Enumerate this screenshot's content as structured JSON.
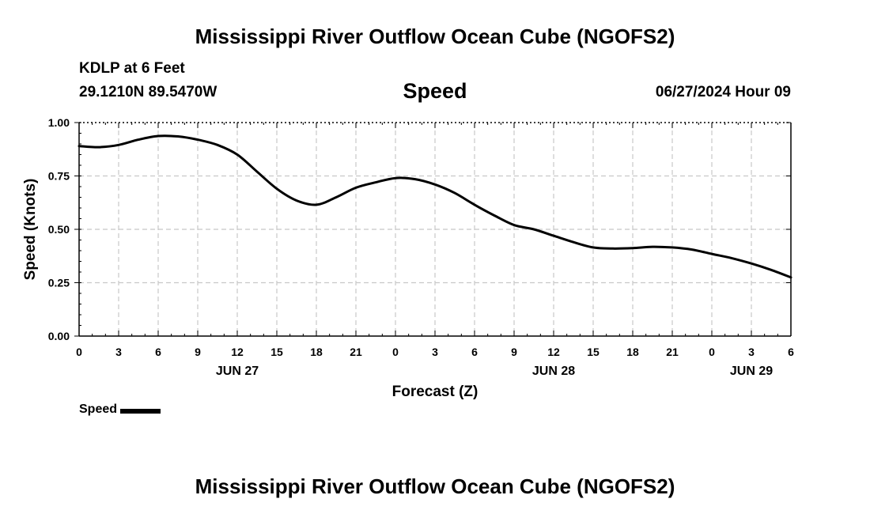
{
  "header": {
    "title": "Mississippi River Outflow Ocean Cube (NGOFS2)",
    "station": "KDLP at 6 Feet",
    "coords": "29.1210N  89.5470W",
    "subtitle": "Speed",
    "timestamp": "06/27/2024 Hour 09"
  },
  "footer": {
    "title": "Mississippi River Outflow Ocean Cube (NGOFS2)"
  },
  "chart_data": {
    "type": "line",
    "title": "Speed",
    "xlabel": "Forecast (Z)",
    "ylabel": "Speed (Knots)",
    "xlim": [
      0,
      54
    ],
    "ylim": [
      0,
      1
    ],
    "grid": true,
    "x_ticks": [
      0,
      3,
      6,
      9,
      12,
      15,
      18,
      21,
      24,
      27,
      30,
      33,
      36,
      39,
      42,
      45,
      48,
      51,
      54
    ],
    "x_tick_labels": [
      "0",
      "3",
      "6",
      "9",
      "12",
      "15",
      "18",
      "21",
      "0",
      "3",
      "6",
      "9",
      "12",
      "15",
      "18",
      "21",
      "0",
      "3",
      "6"
    ],
    "y_ticks": [
      0,
      0.25,
      0.5,
      0.75,
      1.0
    ],
    "y_tick_labels": [
      "0.00",
      "0.25",
      "0.50",
      "0.75",
      "1.00"
    ],
    "date_labels": [
      {
        "x": 12,
        "label": "JUN 27"
      },
      {
        "x": 36,
        "label": "JUN 28"
      },
      {
        "x": 51,
        "label": "JUN 29"
      }
    ],
    "legend": {
      "position": "bottom-left",
      "entries": [
        "Speed"
      ]
    },
    "series": [
      {
        "name": "Speed",
        "color": "#000000",
        "x": [
          0,
          1.5,
          3,
          4.5,
          6,
          7.5,
          9,
          10.5,
          12,
          13.5,
          15,
          16.5,
          18,
          19.5,
          21,
          22.5,
          24,
          25.5,
          27,
          28.5,
          30,
          31.5,
          33,
          34.5,
          36,
          37.5,
          39,
          40.5,
          42,
          43.5,
          45,
          46.5,
          48,
          49.5,
          51,
          52.5,
          54
        ],
        "values": [
          0.89,
          0.885,
          0.895,
          0.92,
          0.937,
          0.935,
          0.92,
          0.895,
          0.85,
          0.77,
          0.69,
          0.635,
          0.615,
          0.65,
          0.695,
          0.72,
          0.74,
          0.735,
          0.71,
          0.67,
          0.615,
          0.565,
          0.52,
          0.5,
          0.47,
          0.44,
          0.415,
          0.41,
          0.412,
          0.418,
          0.415,
          0.405,
          0.385,
          0.365,
          0.34,
          0.31,
          0.275
        ]
      }
    ]
  }
}
